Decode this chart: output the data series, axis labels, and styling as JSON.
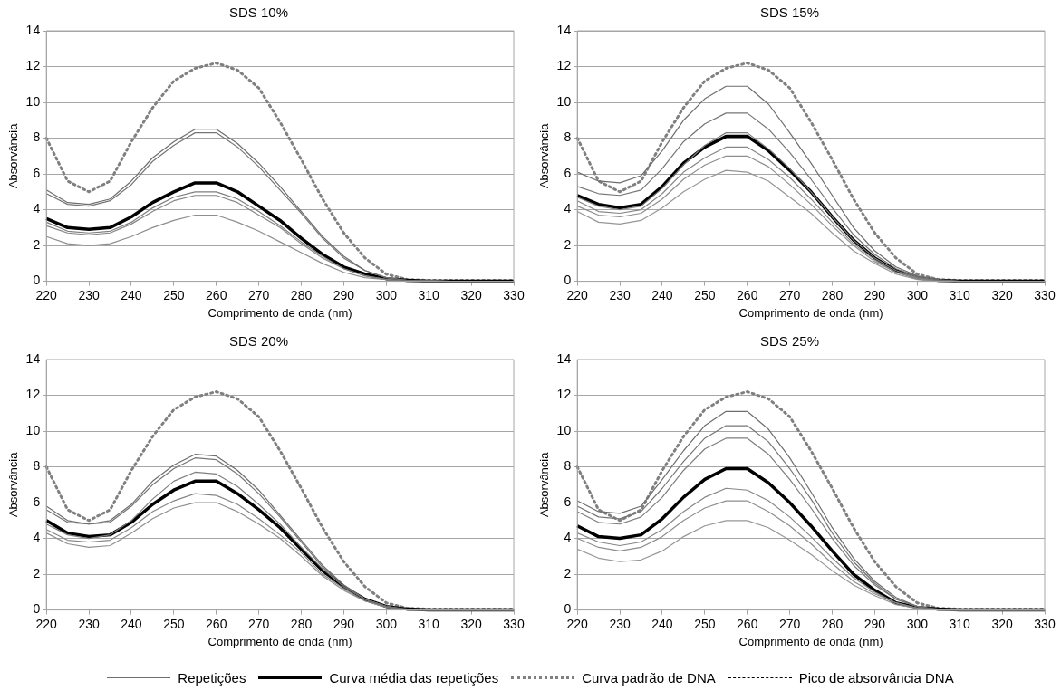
{
  "chart_data": [
    {
      "type": "line",
      "title": "SDS 10%",
      "xlabel": "Comprimento de onda (nm)",
      "ylabel": "Absorvância",
      "x": [
        220,
        225,
        230,
        235,
        240,
        245,
        250,
        255,
        260,
        265,
        270,
        275,
        280,
        285,
        290,
        295,
        300,
        305,
        310,
        315,
        320,
        325,
        330
      ],
      "xlim": [
        220,
        330
      ],
      "xticks": [
        220,
        230,
        240,
        250,
        260,
        270,
        280,
        290,
        300,
        310,
        320,
        330
      ],
      "ylim": [
        0,
        14
      ],
      "yticks": [
        0,
        2,
        4,
        6,
        8,
        10,
        12,
        14
      ],
      "grid": "y",
      "marker": "none",
      "legend": "bottom",
      "series": [
        {
          "name": "Repetições",
          "color": "#6e6e6e",
          "values": [
            5.1,
            4.4,
            4.3,
            4.6,
            5.6,
            6.9,
            7.8,
            8.5,
            8.5,
            7.7,
            6.6,
            5.3,
            3.9,
            2.5,
            1.4,
            0.6,
            0.2,
            0.05,
            0.05,
            0,
            0,
            0,
            0
          ]
        },
        {
          "color": "#767676",
          "values": [
            4.9,
            4.3,
            4.2,
            4.5,
            5.4,
            6.7,
            7.6,
            8.3,
            8.3,
            7.5,
            6.4,
            5.1,
            3.8,
            2.4,
            1.3,
            0.6,
            0.2,
            0.05,
            0.05,
            0,
            0,
            0,
            0
          ]
        },
        {
          "color": "#7e7e7e",
          "values": [
            3.3,
            2.8,
            2.7,
            2.8,
            3.3,
            4.1,
            4.7,
            5.0,
            5.0,
            4.6,
            3.9,
            3.1,
            2.2,
            1.4,
            0.7,
            0.3,
            0.1,
            0,
            0,
            0,
            0,
            0,
            0
          ]
        },
        {
          "color": "#868686",
          "values": [
            3.1,
            2.7,
            2.6,
            2.7,
            3.2,
            3.9,
            4.5,
            4.8,
            4.8,
            4.4,
            3.7,
            3.0,
            2.1,
            1.3,
            0.7,
            0.3,
            0.1,
            0,
            0,
            0,
            0,
            0,
            0
          ]
        },
        {
          "color": "#8e8e8e",
          "values": [
            2.5,
            2.1,
            2.0,
            2.1,
            2.5,
            3.0,
            3.4,
            3.7,
            3.7,
            3.3,
            2.8,
            2.2,
            1.6,
            1.0,
            0.5,
            0.2,
            0.1,
            0,
            0,
            0,
            0,
            0,
            0
          ]
        },
        {
          "name": "Curva média das repetições",
          "color": "#000000",
          "values": [
            3.5,
            3.0,
            2.9,
            3.0,
            3.6,
            4.4,
            5.0,
            5.5,
            5.5,
            5.0,
            4.2,
            3.4,
            2.4,
            1.5,
            0.8,
            0.4,
            0.15,
            0.05,
            0,
            0,
            0,
            0,
            0
          ]
        },
        {
          "name": "Curva padrão de DNA",
          "color": "#808080",
          "line_style": "dotted",
          "values": [
            8.0,
            5.6,
            5.0,
            5.6,
            7.8,
            9.7,
            11.2,
            11.9,
            12.2,
            11.8,
            10.8,
            8.9,
            6.8,
            4.6,
            2.7,
            1.3,
            0.4,
            0.1,
            0.05,
            0.05,
            0.05,
            0.05,
            0.05
          ]
        }
      ],
      "ref_lines": [
        {
          "axis": "x",
          "value": 260,
          "label": "Pico de absorvância DNA",
          "line_style": "dashed",
          "color": "#000000"
        }
      ]
    },
    {
      "type": "line",
      "title": "SDS 15%",
      "xlabel": "Comprimento de onda (nm)",
      "ylabel": "Absorvância",
      "x": [
        220,
        225,
        230,
        235,
        240,
        245,
        250,
        255,
        260,
        265,
        270,
        275,
        280,
        285,
        290,
        295,
        300,
        305,
        310,
        315,
        320,
        325,
        330
      ],
      "xlim": [
        220,
        330
      ],
      "xticks": [
        220,
        230,
        240,
        250,
        260,
        270,
        280,
        290,
        300,
        310,
        320,
        330
      ],
      "ylim": [
        0,
        14
      ],
      "yticks": [
        0,
        2,
        4,
        6,
        8,
        10,
        12,
        14
      ],
      "grid": "y",
      "marker": "none",
      "series": [
        {
          "color": "#6e6e6e",
          "values": [
            6.1,
            5.6,
            5.5,
            5.9,
            7.3,
            9.0,
            10.2,
            10.9,
            10.9,
            9.9,
            8.3,
            6.6,
            4.8,
            3.0,
            1.7,
            0.8,
            0.3,
            0.1,
            0,
            0,
            0,
            0,
            0
          ]
        },
        {
          "color": "#767676",
          "values": [
            5.3,
            4.9,
            4.8,
            5.1,
            6.3,
            7.8,
            8.8,
            9.4,
            9.4,
            8.5,
            7.2,
            5.7,
            4.1,
            2.6,
            1.5,
            0.7,
            0.25,
            0.05,
            0,
            0,
            0,
            0,
            0
          ]
        },
        {
          "color": "#7e7e7e",
          "values": [
            4.7,
            4.2,
            4.0,
            4.2,
            5.2,
            6.5,
            7.6,
            8.3,
            8.3,
            7.4,
            6.3,
            5.0,
            3.6,
            2.3,
            1.3,
            0.6,
            0.2,
            0.05,
            0,
            0,
            0,
            0,
            0
          ]
        },
        {
          "color": "#868686",
          "values": [
            4.5,
            3.9,
            3.8,
            4.0,
            4.9,
            6.1,
            6.9,
            7.5,
            7.5,
            6.8,
            5.8,
            4.6,
            3.3,
            2.1,
            1.2,
            0.5,
            0.2,
            0,
            0,
            0,
            0,
            0,
            0
          ]
        },
        {
          "color": "#8e8e8e",
          "values": [
            4.2,
            3.7,
            3.6,
            3.8,
            4.6,
            5.7,
            6.5,
            7.0,
            7.0,
            6.4,
            5.4,
            4.3,
            3.1,
            2.0,
            1.1,
            0.5,
            0.15,
            0,
            0,
            0,
            0,
            0,
            0
          ]
        },
        {
          "color": "#969696",
          "values": [
            3.9,
            3.3,
            3.2,
            3.4,
            4.1,
            5.0,
            5.7,
            6.2,
            6.1,
            5.6,
            4.7,
            3.8,
            2.7,
            1.7,
            1.0,
            0.4,
            0.1,
            0,
            0,
            0,
            0,
            0,
            0
          ]
        },
        {
          "color": "#000000",
          "values": [
            4.8,
            4.3,
            4.1,
            4.3,
            5.3,
            6.6,
            7.5,
            8.1,
            8.1,
            7.3,
            6.2,
            5.0,
            3.6,
            2.3,
            1.3,
            0.6,
            0.2,
            0.05,
            0,
            0,
            0,
            0,
            0
          ]
        },
        {
          "color": "#808080",
          "line_style": "dotted",
          "values": [
            8.0,
            5.6,
            5.0,
            5.6,
            7.8,
            9.7,
            11.2,
            11.9,
            12.2,
            11.8,
            10.8,
            8.9,
            6.8,
            4.6,
            2.7,
            1.3,
            0.4,
            0.1,
            0.05,
            0.05,
            0.05,
            0.05,
            0.05
          ]
        }
      ],
      "ref_lines": [
        {
          "axis": "x",
          "value": 260,
          "line_style": "dashed",
          "color": "#000000"
        }
      ]
    },
    {
      "type": "line",
      "title": "SDS 20%",
      "xlabel": "Comprimento de onda (nm)",
      "ylabel": "Absorvância",
      "x": [
        220,
        225,
        230,
        235,
        240,
        245,
        250,
        255,
        260,
        265,
        270,
        275,
        280,
        285,
        290,
        295,
        300,
        305,
        310,
        315,
        320,
        325,
        330
      ],
      "xlim": [
        220,
        330
      ],
      "xticks": [
        220,
        230,
        240,
        250,
        260,
        270,
        280,
        290,
        300,
        310,
        320,
        330
      ],
      "ylim": [
        0,
        14
      ],
      "yticks": [
        0,
        2,
        4,
        6,
        8,
        10,
        12,
        14
      ],
      "grid": "y",
      "marker": "none",
      "series": [
        {
          "color": "#6e6e6e",
          "values": [
            5.8,
            5.0,
            4.8,
            5.0,
            5.9,
            7.2,
            8.1,
            8.7,
            8.6,
            7.8,
            6.7,
            5.3,
            3.9,
            2.5,
            1.4,
            0.6,
            0.2,
            0.05,
            0,
            0,
            0,
            0,
            0
          ]
        },
        {
          "color": "#767676",
          "values": [
            5.6,
            4.9,
            4.8,
            4.9,
            5.8,
            7.0,
            7.9,
            8.5,
            8.4,
            7.6,
            6.5,
            5.2,
            3.8,
            2.4,
            1.4,
            0.6,
            0.2,
            0,
            0,
            0,
            0,
            0,
            0
          ]
        },
        {
          "color": "#7e7e7e",
          "values": [
            4.8,
            4.2,
            4.0,
            4.2,
            5.0,
            6.2,
            7.2,
            7.7,
            7.6,
            6.9,
            5.9,
            4.8,
            3.5,
            2.3,
            1.3,
            0.6,
            0.2,
            0,
            0,
            0,
            0,
            0,
            0
          ]
        },
        {
          "color": "#868686",
          "values": [
            4.5,
            3.9,
            3.8,
            3.9,
            4.6,
            5.5,
            6.1,
            6.5,
            6.4,
            5.9,
            5.1,
            4.2,
            3.2,
            2.0,
            1.2,
            0.5,
            0.2,
            0,
            0,
            0,
            0,
            0,
            0
          ]
        },
        {
          "color": "#8e8e8e",
          "values": [
            4.3,
            3.7,
            3.5,
            3.6,
            4.3,
            5.1,
            5.7,
            6.0,
            6.0,
            5.5,
            4.8,
            4.0,
            3.0,
            1.9,
            1.1,
            0.5,
            0.15,
            0,
            0,
            0,
            0,
            0,
            0
          ]
        },
        {
          "color": "#000000",
          "values": [
            5.0,
            4.3,
            4.1,
            4.2,
            4.9,
            5.9,
            6.7,
            7.2,
            7.2,
            6.5,
            5.6,
            4.6,
            3.4,
            2.2,
            1.3,
            0.6,
            0.2,
            0.05,
            0,
            0,
            0,
            0,
            0
          ]
        },
        {
          "color": "#808080",
          "line_style": "dotted",
          "values": [
            8.0,
            5.6,
            5.0,
            5.6,
            7.8,
            9.7,
            11.2,
            11.9,
            12.2,
            11.8,
            10.8,
            8.9,
            6.8,
            4.6,
            2.7,
            1.3,
            0.4,
            0.1,
            0.05,
            0.05,
            0.05,
            0.05,
            0.05
          ]
        }
      ],
      "ref_lines": [
        {
          "axis": "x",
          "value": 260,
          "line_style": "dashed",
          "color": "#000000"
        }
      ]
    },
    {
      "type": "line",
      "title": "SDS 25%",
      "xlabel": "Comprimento de onda (nm)",
      "ylabel": "Absorvância",
      "x": [
        220,
        225,
        230,
        235,
        240,
        245,
        250,
        255,
        260,
        265,
        270,
        275,
        280,
        285,
        290,
        295,
        300,
        305,
        310,
        315,
        320,
        325,
        330
      ],
      "xlim": [
        220,
        330
      ],
      "xticks": [
        220,
        230,
        240,
        250,
        260,
        270,
        280,
        290,
        300,
        310,
        320,
        330
      ],
      "ylim": [
        0,
        14
      ],
      "yticks": [
        0,
        2,
        4,
        6,
        8,
        10,
        12,
        14
      ],
      "grid": "y",
      "marker": "none",
      "series": [
        {
          "color": "#6e6e6e",
          "values": [
            6.1,
            5.5,
            5.4,
            5.8,
            7.3,
            8.9,
            10.3,
            11.1,
            11.1,
            10.1,
            8.5,
            6.6,
            4.6,
            2.9,
            1.6,
            0.7,
            0.2,
            0.05,
            0,
            0,
            0,
            0,
            0
          ]
        },
        {
          "color": "#767676",
          "values": [
            5.8,
            5.2,
            5.1,
            5.5,
            6.8,
            8.3,
            9.6,
            10.3,
            10.3,
            9.4,
            7.9,
            6.2,
            4.3,
            2.7,
            1.5,
            0.6,
            0.2,
            0,
            0,
            0,
            0,
            0,
            0
          ]
        },
        {
          "color": "#7e7e7e",
          "values": [
            5.5,
            4.9,
            4.8,
            5.2,
            6.3,
            7.8,
            9.0,
            9.6,
            9.6,
            8.7,
            7.3,
            5.7,
            4.0,
            2.5,
            1.4,
            0.6,
            0.2,
            0,
            0,
            0,
            0,
            0,
            0
          ]
        },
        {
          "color": "#868686",
          "values": [
            4.3,
            3.8,
            3.6,
            3.8,
            4.5,
            5.5,
            6.3,
            6.8,
            6.7,
            6.1,
            5.2,
            4.1,
            2.9,
            1.8,
            1.0,
            0.4,
            0.1,
            0,
            0,
            0,
            0,
            0,
            0
          ]
        },
        {
          "color": "#8e8e8e",
          "values": [
            4.0,
            3.5,
            3.3,
            3.5,
            4.1,
            5.0,
            5.7,
            6.1,
            6.1,
            5.5,
            4.7,
            3.7,
            2.6,
            1.6,
            0.9,
            0.4,
            0.1,
            0,
            0,
            0,
            0,
            0,
            0
          ]
        },
        {
          "color": "#969696",
          "values": [
            3.4,
            2.9,
            2.7,
            2.8,
            3.3,
            4.1,
            4.7,
            5.0,
            5.0,
            4.6,
            3.9,
            3.1,
            2.2,
            1.4,
            0.8,
            0.3,
            0.1,
            0,
            0,
            0,
            0,
            0,
            0
          ]
        },
        {
          "color": "#000000",
          "values": [
            4.7,
            4.1,
            4.0,
            4.2,
            5.1,
            6.3,
            7.3,
            7.9,
            7.9,
            7.1,
            6.0,
            4.7,
            3.3,
            2.0,
            1.1,
            0.4,
            0.15,
            0.05,
            0,
            0,
            0,
            0,
            0
          ]
        },
        {
          "color": "#808080",
          "line_style": "dotted",
          "values": [
            8.0,
            5.6,
            5.0,
            5.6,
            7.8,
            9.7,
            11.2,
            11.9,
            12.2,
            11.8,
            10.8,
            8.9,
            6.8,
            4.6,
            2.7,
            1.3,
            0.4,
            0.1,
            0.05,
            0.05,
            0.05,
            0.05,
            0.05
          ]
        }
      ],
      "ref_lines": [
        {
          "axis": "x",
          "value": 260,
          "line_style": "dashed",
          "color": "#000000"
        }
      ]
    }
  ]
}
